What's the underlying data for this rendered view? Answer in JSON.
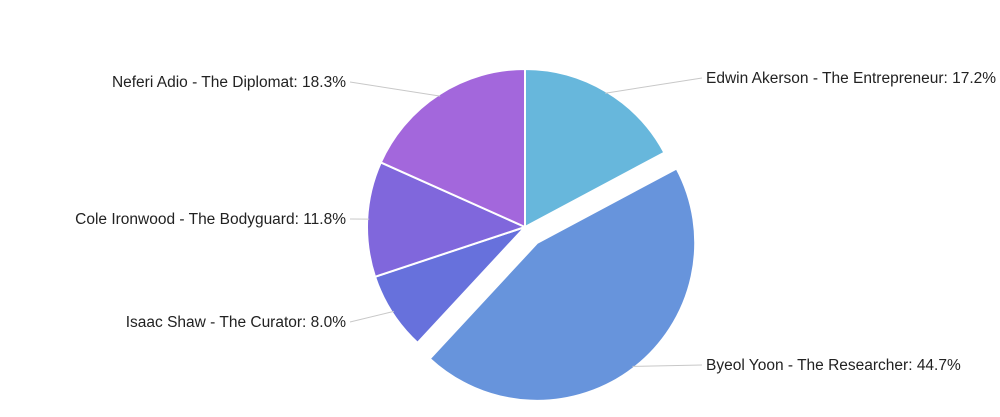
{
  "chart_data": {
    "type": "pie",
    "start_angle_deg": 0,
    "direction": "clockwise",
    "exploded_slice": "Byeol Yoon - The Researcher",
    "legend": "none",
    "slices": [
      {
        "label": "Edwin Akerson - The Entrepreneur",
        "value": 17.2,
        "value_text": "17.2%",
        "color": "#67b7dc"
      },
      {
        "label": "Byeol Yoon - The Researcher",
        "value": 44.7,
        "value_text": "44.7%",
        "color": "#6794dc"
      },
      {
        "label": "Isaac Shaw - The Curator",
        "value": 8.0,
        "value_text": "8.0%",
        "color": "#6771dc"
      },
      {
        "label": "Cole Ironwood - The Bodyguard",
        "value": 11.8,
        "value_text": "11.8%",
        "color": "#8067dc"
      },
      {
        "label": "Neferi Adio - The Diplomat",
        "value": 18.3,
        "value_text": "18.3%",
        "color": "#a367dc"
      }
    ]
  }
}
